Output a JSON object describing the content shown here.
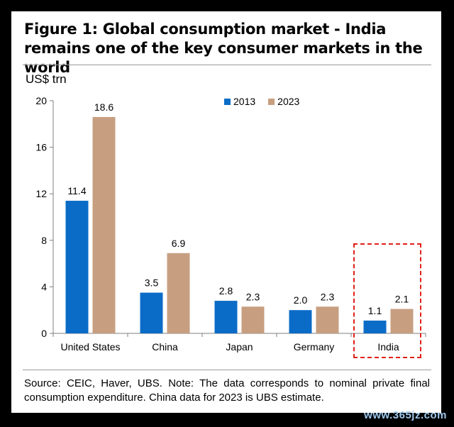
{
  "title": "Figure 1: Global consumption market - India remains one of the key consumer markets in the world",
  "source_note": "Source: CEIC, Haver, UBS. Note: The data corresponds to nominal private final consumption expenditure. China data for 2023 is UBS estimate.",
  "watermark": "www.365jz.com",
  "colors": {
    "series_2013": "#0b6cc7",
    "series_2023": "#c79f80",
    "highlight": "#e0201a",
    "axis": "#7f7f7f"
  },
  "chart_data": {
    "type": "bar",
    "unit_label": "US$ trn",
    "categories": [
      "United States",
      "China",
      "Japan",
      "Germany",
      "India"
    ],
    "series": [
      {
        "name": "2013",
        "values": [
          11.4,
          3.5,
          2.8,
          2.0,
          1.1
        ],
        "labels": [
          "11.4",
          "3.5",
          "2.8",
          "2.0",
          "1.1"
        ]
      },
      {
        "name": "2023",
        "values": [
          18.6,
          6.9,
          2.3,
          2.3,
          2.1
        ],
        "labels": [
          "18.6",
          "6.9",
          "2.3",
          "2.3",
          "2.1"
        ]
      }
    ],
    "yticks": [
      "0",
      "4",
      "8",
      "12",
      "16",
      "20"
    ],
    "ylim": [
      0,
      20
    ],
    "grid": false,
    "legend_position": "top-right",
    "highlighted_category": "India"
  }
}
